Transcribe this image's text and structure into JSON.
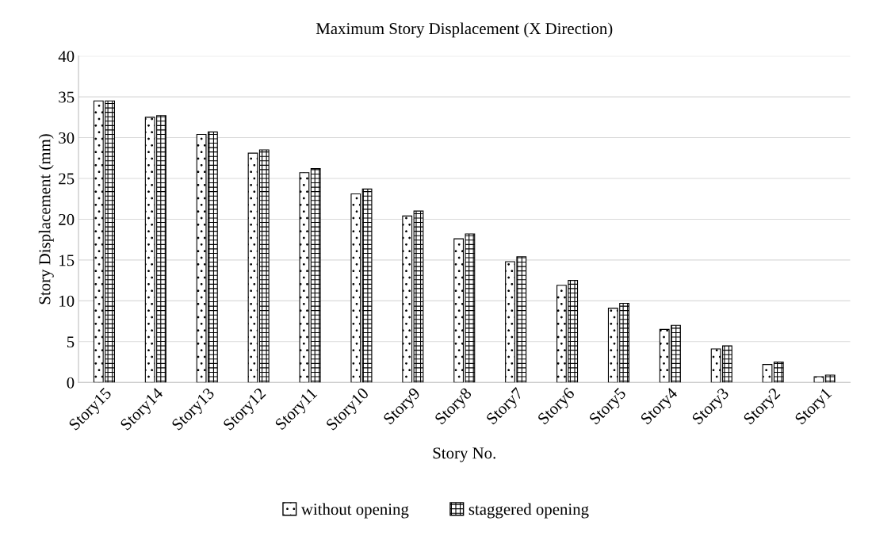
{
  "chart_data": {
    "type": "bar",
    "title": "Maximum Story Displacement (X Direction)",
    "xlabel": "Story No.",
    "ylabel": "Story Displacement (mm)",
    "categories": [
      "Story15",
      "Story14",
      "Story13",
      "Story12",
      "Story11",
      "Story10",
      "Story9",
      "Story8",
      "Story7",
      "Story6",
      "Story5",
      "Story4",
      "Story3",
      "Story2",
      "Story1"
    ],
    "series": [
      {
        "name": "without opening",
        "color": "#000000",
        "values": [
          34.5,
          32.5,
          30.4,
          28.1,
          25.7,
          23.1,
          20.4,
          17.6,
          14.8,
          11.9,
          9.1,
          6.5,
          4.1,
          2.2,
          0.7
        ]
      },
      {
        "name": "staggered opening",
        "color": "#000000",
        "values": [
          34.5,
          32.7,
          30.7,
          28.5,
          26.2,
          23.7,
          21.0,
          18.2,
          15.4,
          12.5,
          9.7,
          7.0,
          4.5,
          2.5,
          0.9
        ]
      }
    ],
    "ylim": [
      0,
      40
    ],
    "yticks": [
      0,
      5,
      10,
      15,
      20,
      25,
      30,
      35,
      40
    ],
    "grid": "y",
    "legend": "bottom"
  }
}
